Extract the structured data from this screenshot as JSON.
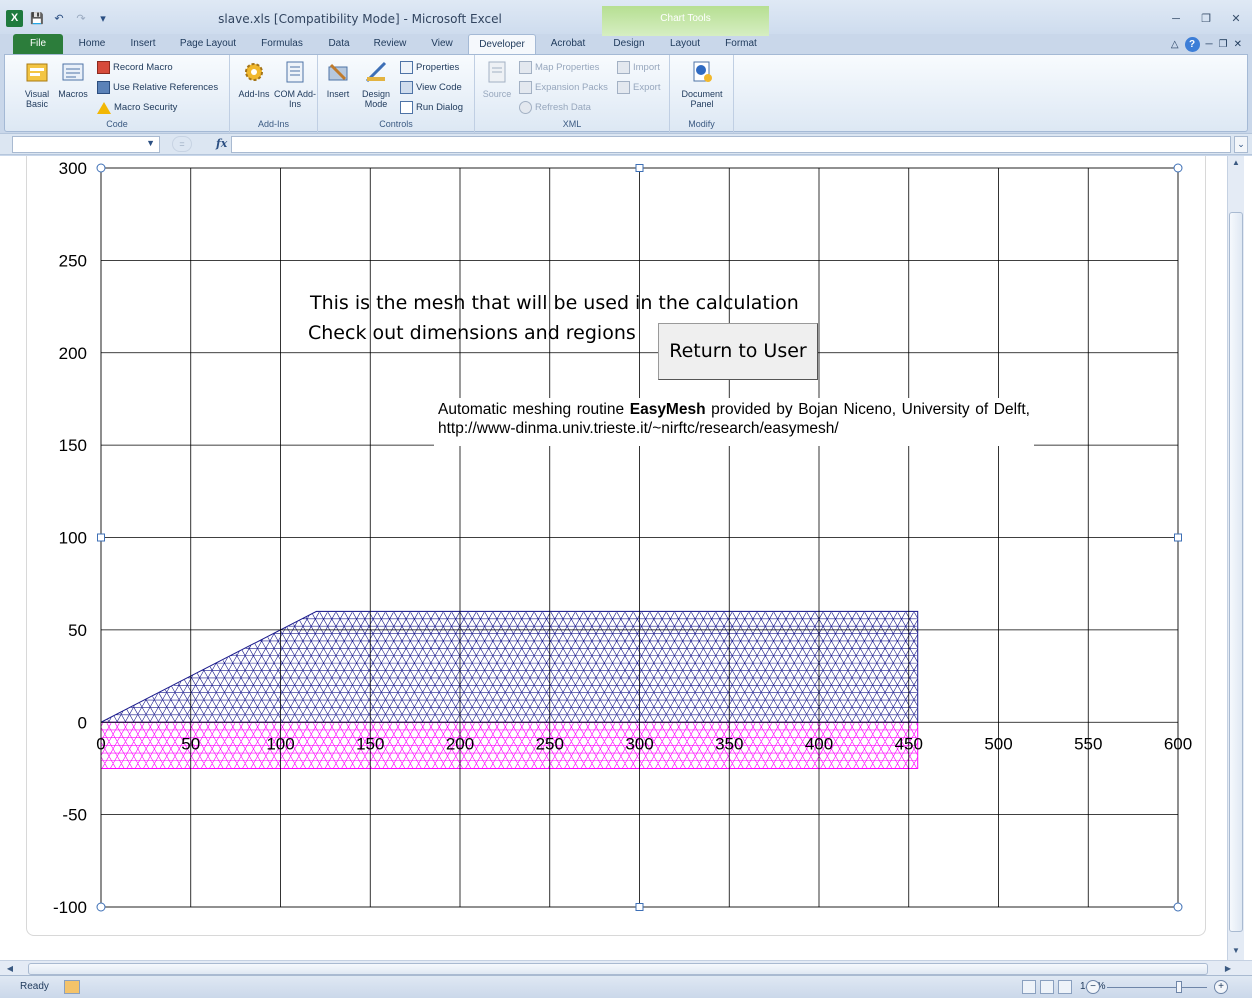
{
  "window": {
    "title": "slave.xls [Compatibility Mode] - Microsoft Excel",
    "context_group": "Chart Tools"
  },
  "qat": {
    "logo": "X"
  },
  "tabs": [
    {
      "label": "File"
    },
    {
      "label": "Home"
    },
    {
      "label": "Insert"
    },
    {
      "label": "Page Layout"
    },
    {
      "label": "Formulas"
    },
    {
      "label": "Data"
    },
    {
      "label": "Review"
    },
    {
      "label": "View"
    },
    {
      "label": "Developer"
    },
    {
      "label": "Acrobat"
    },
    {
      "label": "Design"
    },
    {
      "label": "Layout"
    },
    {
      "label": "Format"
    }
  ],
  "ribbon": {
    "code": {
      "label": "Code",
      "visual_basic": "Visual Basic",
      "macros": "Macros",
      "record_macro": "Record Macro",
      "relative_refs": "Use Relative References",
      "macro_security": "Macro Security"
    },
    "addins": {
      "label": "Add-Ins",
      "addins": "Add-Ins",
      "com_addins": "COM Add-Ins"
    },
    "controls": {
      "label": "Controls",
      "insert": "Insert",
      "design_mode": "Design Mode",
      "properties": "Properties",
      "view_code": "View Code",
      "run_dialog": "Run Dialog"
    },
    "xml": {
      "label": "XML",
      "source": "Source",
      "map_properties": "Map Properties",
      "expansion_packs": "Expansion Packs",
      "refresh_data": "Refresh Data",
      "import": "Import",
      "export": "Export"
    },
    "modify": {
      "label": "Modify",
      "document_panel": "Document Panel"
    }
  },
  "formula_bar": {
    "name_box": "",
    "fx": "fx",
    "formula": ""
  },
  "chart": {
    "heading_line1": "This is the mesh that will be used in the calculation",
    "heading_line2": "Check out dimensions and regions",
    "button_label": "Return to User",
    "credit_pre": "Automatic meshing routine ",
    "credit_bold": "EasyMesh",
    "credit_post": " provided by Bojan Niceno, University of Delft, http://www-dinma.univ.trieste.it/~nirftc/research/easymesh/",
    "colors": {
      "upper_mesh": "#1a1a8c",
      "lower_mesh": "#ff00ff",
      "grid": "#000000"
    }
  },
  "chart_data": {
    "type": "scatter",
    "xlim": [
      0,
      600
    ],
    "ylim": [
      -100,
      300
    ],
    "x_ticks": [
      0,
      50,
      100,
      150,
      200,
      250,
      300,
      350,
      400,
      450,
      500,
      550,
      600
    ],
    "y_ticks": [
      300,
      250,
      200,
      150,
      100,
      50,
      0,
      -50,
      -100
    ],
    "grid": true,
    "regions": [
      {
        "polygon": [
          [
            0,
            0
          ],
          [
            120,
            60
          ],
          [
            455,
            60
          ],
          [
            455,
            0
          ]
        ]
      },
      {
        "polygon": [
          [
            0,
            0
          ],
          [
            455,
            0
          ],
          [
            455,
            -25
          ],
          [
            0,
            -25
          ]
        ]
      }
    ]
  },
  "status": {
    "ready": "Ready",
    "zoom": "145%"
  }
}
